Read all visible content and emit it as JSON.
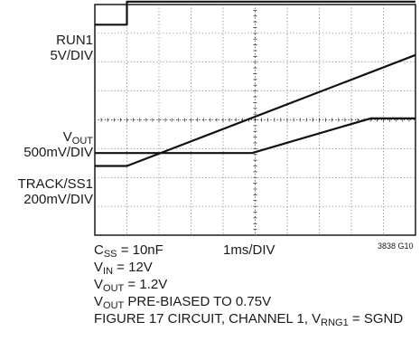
{
  "chart_data": {
    "type": "line",
    "x_unit": "ms",
    "time_per_div": "1ms/DIV",
    "x_divisions": 10,
    "y_divisions": 8,
    "xlim": [
      0,
      10
    ],
    "ylim": [
      0,
      8
    ],
    "grid": true,
    "series": [
      {
        "name": "RUN1",
        "scale": "5V/DIV",
        "x": [
          0,
          1.0,
          1.0,
          10.0
        ],
        "y": [
          7.3,
          7.3,
          8.1,
          8.1
        ]
      },
      {
        "name": "VOUT",
        "scale": "500mV/DIV",
        "x": [
          0,
          4.9,
          8.6,
          10.0
        ],
        "y": [
          2.85,
          2.85,
          4.05,
          4.05
        ]
      },
      {
        "name": "TRACK/SS1",
        "scale": "200mV/DIV",
        "x": [
          0,
          1.0,
          10.0
        ],
        "y": [
          2.4,
          2.4,
          6.25
        ]
      }
    ]
  },
  "labels": {
    "run1_name": "RUN1",
    "run1_scale": "5V/DIV",
    "vout_v": "V",
    "vout_sub": "OUT",
    "vout_scale": "500mV/DIV",
    "track_name": "TRACK/SS1",
    "track_scale": "200mV/DIV"
  },
  "bottom": {
    "css_c": "C",
    "css_sub": "SS",
    "css_val": " = 10nF",
    "timebase": "1ms/DIV",
    "fig_code": "3838 G10",
    "vin_v": "V",
    "vin_sub": "IN",
    "vin_val": " = 12V",
    "vout_v": "V",
    "vout_sub": "OUT",
    "vout_val": " = 1.2V",
    "prebias_v": "V",
    "prebias_sub": "OUT",
    "prebias_val": " PRE-BIASED TO 0.75V",
    "fig_text": "FIGURE 17 CIRCUIT, CHANNEL 1, V",
    "fig_sub": "RNG1",
    "fig_end": " = SGND"
  }
}
